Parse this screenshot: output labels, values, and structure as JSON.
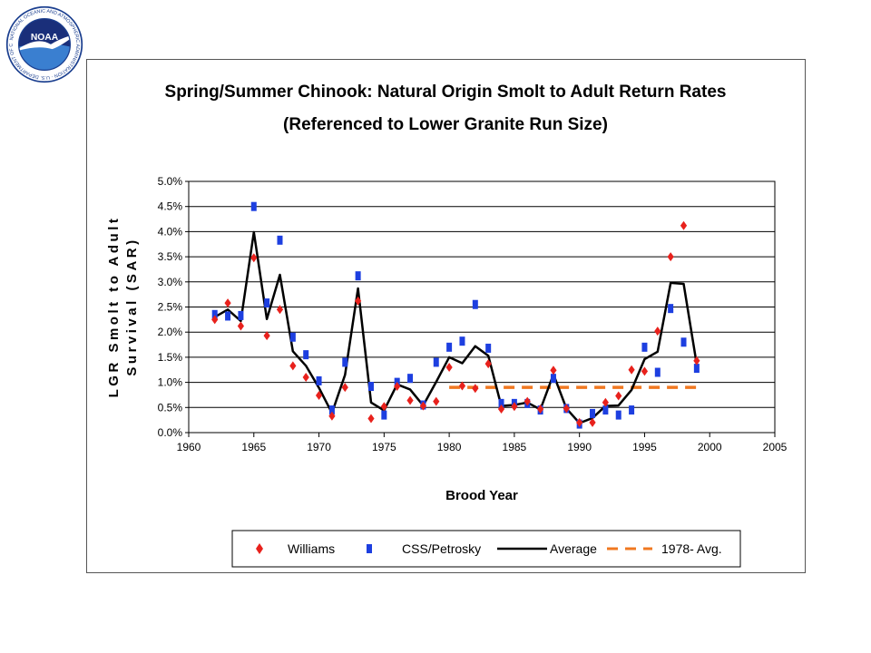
{
  "logo": {
    "text": "NOAA",
    "ring_text": "NATIONAL OCEANIC AND ATMOSPHERIC ADMINISTRATION · U.S. DEPARTMENT OF COMMERCE",
    "colors": {
      "outer": "#1b3f8f",
      "inner_top": "#1a2f7a",
      "inner_bottom": "#3a7fd0"
    }
  },
  "chart_data": {
    "type": "scatter",
    "title": "Spring/Summer Chinook: Natural Origin Smolt to Adult Return Rates",
    "subtitle": "(Referenced to Lower Granite Run Size)",
    "xlabel": "Brood Year",
    "ylabel_line1": "LGR Smolt to Adult",
    "ylabel_line2": "Survival (SAR)",
    "xlim": [
      1960,
      2005
    ],
    "ylim": [
      0,
      5
    ],
    "x_ticks": [
      1960,
      1965,
      1970,
      1975,
      1980,
      1985,
      1990,
      1995,
      2000,
      2005
    ],
    "y_ticks": [
      "0.0%",
      "0.5%",
      "1.0%",
      "1.5%",
      "2.0%",
      "2.5%",
      "3.0%",
      "3.5%",
      "4.0%",
      "4.5%",
      "5.0%"
    ],
    "grid": "horizontal",
    "legend_position": "bottom",
    "series": [
      {
        "name": "Williams",
        "marker": "diamond",
        "color": "#e8211c",
        "points": [
          [
            1962,
            2.25
          ],
          [
            1963,
            2.58
          ],
          [
            1964,
            2.12
          ],
          [
            1965,
            3.48
          ],
          [
            1966,
            1.93
          ],
          [
            1967,
            2.45
          ],
          [
            1968,
            1.33
          ],
          [
            1969,
            1.1
          ],
          [
            1970,
            0.74
          ],
          [
            1971,
            0.33
          ],
          [
            1972,
            0.9
          ],
          [
            1973,
            2.62
          ],
          [
            1974,
            0.28
          ],
          [
            1975,
            0.52
          ],
          [
            1976,
            0.92
          ],
          [
            1977,
            0.64
          ],
          [
            1978,
            0.53
          ],
          [
            1979,
            0.62
          ],
          [
            1980,
            1.3
          ],
          [
            1981,
            0.93
          ],
          [
            1982,
            0.88
          ],
          [
            1983,
            1.37
          ],
          [
            1984,
            0.47
          ],
          [
            1985,
            0.52
          ],
          [
            1986,
            0.62
          ],
          [
            1987,
            0.47
          ],
          [
            1988,
            1.24
          ],
          [
            1989,
            0.48
          ],
          [
            1990,
            0.2
          ],
          [
            1991,
            0.2
          ],
          [
            1992,
            0.6
          ],
          [
            1993,
            0.73
          ],
          [
            1994,
            1.25
          ],
          [
            1995,
            1.22
          ],
          [
            1996,
            2.02
          ],
          [
            1997,
            3.5
          ],
          [
            1998,
            4.12
          ],
          [
            1999,
            1.43
          ]
        ]
      },
      {
        "name": "CSS/Petrosky",
        "marker": "square",
        "color": "#1d3fe0",
        "points": [
          [
            1962,
            2.35
          ],
          [
            1963,
            2.32
          ],
          [
            1964,
            2.33
          ],
          [
            1965,
            4.5
          ],
          [
            1966,
            2.58
          ],
          [
            1967,
            3.83
          ],
          [
            1968,
            1.9
          ],
          [
            1969,
            1.55
          ],
          [
            1970,
            1.03
          ],
          [
            1971,
            0.45
          ],
          [
            1972,
            1.4
          ],
          [
            1973,
            3.12
          ],
          [
            1974,
            0.92
          ],
          [
            1975,
            0.35
          ],
          [
            1976,
            1.0
          ],
          [
            1977,
            1.08
          ],
          [
            1978,
            0.55
          ],
          [
            1979,
            1.4
          ],
          [
            1980,
            1.7
          ],
          [
            1981,
            1.82
          ],
          [
            1982,
            2.55
          ],
          [
            1983,
            1.68
          ],
          [
            1984,
            0.58
          ],
          [
            1985,
            0.58
          ],
          [
            1986,
            0.58
          ],
          [
            1987,
            0.45
          ],
          [
            1988,
            1.08
          ],
          [
            1989,
            0.48
          ],
          [
            1990,
            0.17
          ],
          [
            1991,
            0.38
          ],
          [
            1992,
            0.45
          ],
          [
            1993,
            0.35
          ],
          [
            1994,
            0.45
          ],
          [
            1995,
            1.7
          ],
          [
            1996,
            1.2
          ],
          [
            1997,
            2.47
          ],
          [
            1998,
            1.8
          ],
          [
            1999,
            1.28
          ]
        ]
      },
      {
        "name": "Average",
        "marker": "line",
        "color": "#000000",
        "points": [
          [
            1962,
            2.3
          ],
          [
            1963,
            2.45
          ],
          [
            1964,
            2.22
          ],
          [
            1965,
            3.99
          ],
          [
            1966,
            2.26
          ],
          [
            1967,
            3.14
          ],
          [
            1968,
            1.62
          ],
          [
            1969,
            1.33
          ],
          [
            1970,
            0.89
          ],
          [
            1971,
            0.39
          ],
          [
            1972,
            1.15
          ],
          [
            1973,
            2.87
          ],
          [
            1974,
            0.6
          ],
          [
            1975,
            0.44
          ],
          [
            1976,
            0.96
          ],
          [
            1977,
            0.86
          ],
          [
            1978,
            0.54
          ],
          [
            1979,
            1.01
          ],
          [
            1980,
            1.5
          ],
          [
            1981,
            1.38
          ],
          [
            1982,
            1.72
          ],
          [
            1983,
            1.53
          ],
          [
            1984,
            0.53
          ],
          [
            1985,
            0.55
          ],
          [
            1986,
            0.6
          ],
          [
            1987,
            0.46
          ],
          [
            1988,
            1.16
          ],
          [
            1989,
            0.48
          ],
          [
            1990,
            0.19
          ],
          [
            1991,
            0.29
          ],
          [
            1992,
            0.53
          ],
          [
            1993,
            0.54
          ],
          [
            1994,
            0.85
          ],
          [
            1995,
            1.46
          ],
          [
            1996,
            1.61
          ],
          [
            1997,
            2.98
          ],
          [
            1998,
            2.96
          ],
          [
            1999,
            1.36
          ]
        ]
      },
      {
        "name": "1978- Avg.",
        "marker": "dashed-line",
        "color": "#f07820",
        "points": [
          [
            1980,
            0.9
          ],
          [
            1999,
            0.9
          ]
        ]
      }
    ]
  }
}
